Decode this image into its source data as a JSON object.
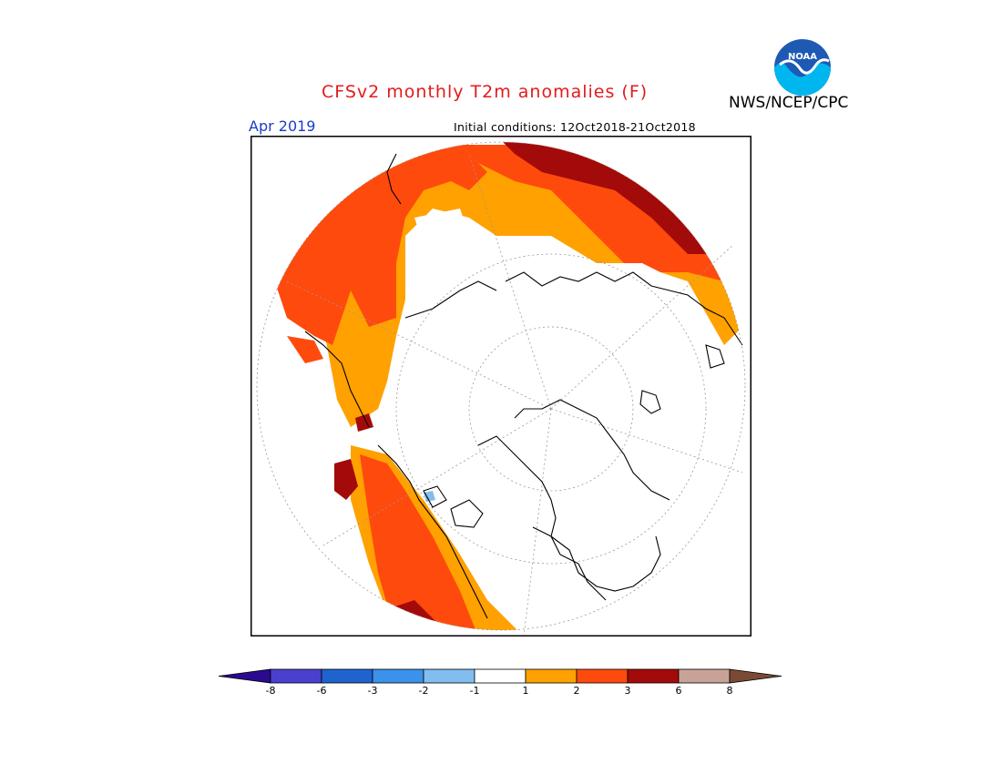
{
  "title": "CFSv2 monthly T2m anomalies (F)",
  "organization": "NWS/NCEP/CPC",
  "logo_text": "NOAA",
  "valid_month": "Apr 2019",
  "initial_conditions": "Initial conditions: 12Oct2018-21Oct2018",
  "colors": {
    "title": "#e41a1c",
    "month": "#1a3cc8",
    "land_outline": "#000000",
    "white_band": "#ffffff"
  },
  "colorbar": {
    "colors": [
      "#2a0a8e",
      "#4b3fd0",
      "#1f63cf",
      "#3a92ea",
      "#82bdf0",
      "#ffffff",
      "#ffa100",
      "#ff4a0d",
      "#a30a0a",
      "#c9a297",
      "#7a4a36"
    ],
    "labels": [
      "-8",
      "-6",
      "-3",
      "-2",
      "-1",
      "1",
      "2",
      "3",
      "6",
      "8"
    ]
  }
}
